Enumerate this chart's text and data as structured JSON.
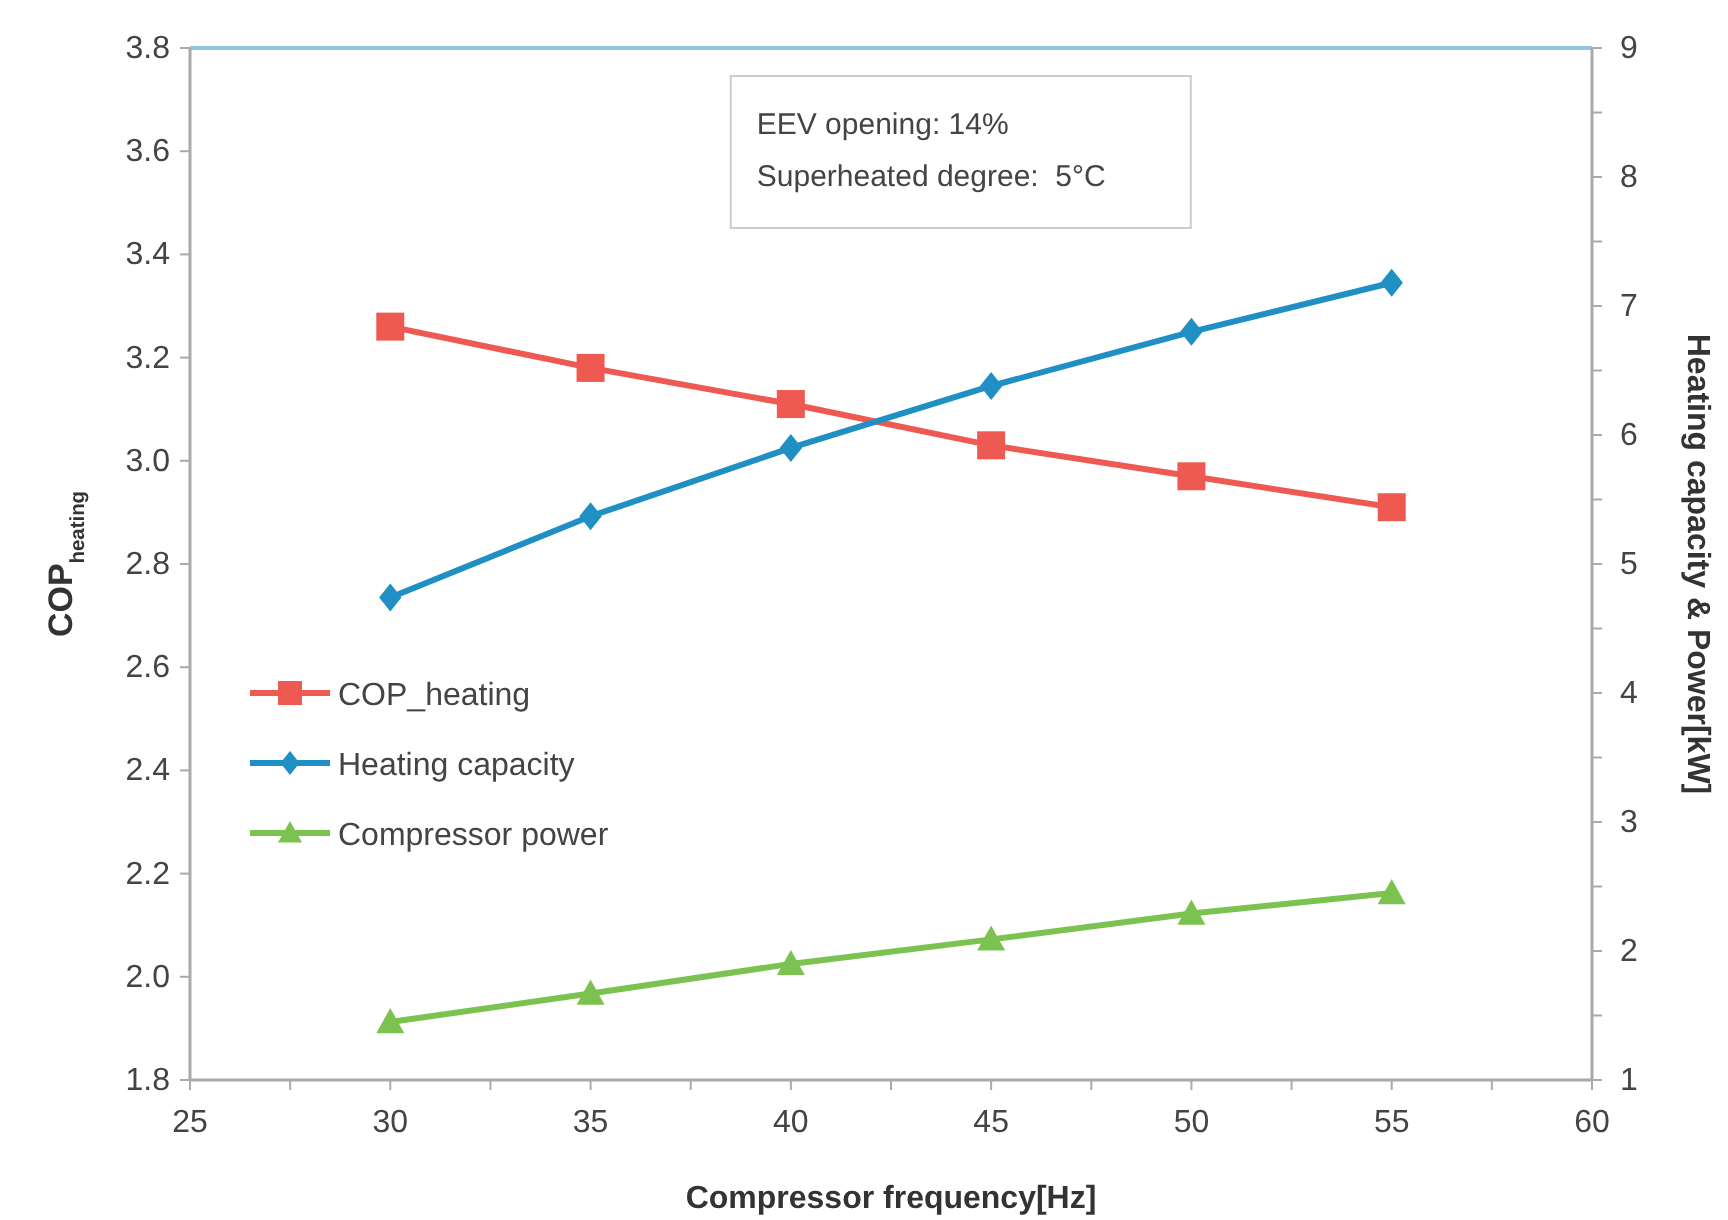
{
  "chart_data": {
    "type": "line",
    "xlabel": "Compressor frequency[Hz]",
    "ylabel": "COP$_{heating}$",
    "y2label": "Heating capacity & Power[kW]",
    "x": [
      30,
      35,
      40,
      45,
      50,
      55
    ],
    "series": [
      {
        "name": "COP_heating",
        "color": "#ee5a52",
        "marker": "square",
        "values": [
          3.26,
          3.18,
          3.11,
          3.03,
          2.97,
          2.91
        ]
      },
      {
        "name": "Heating capacity",
        "color": "#1f8fc4",
        "marker": "diamond",
        "axis": "y2",
        "values": [
          4.74,
          5.37,
          5.9,
          6.38,
          6.8,
          7.18
        ]
      },
      {
        "name": "Compressor power",
        "color": "#7cc250",
        "marker": "triangle",
        "axis": "y2",
        "values": [
          1.45,
          1.67,
          1.9,
          2.09,
          2.29,
          2.45
        ]
      }
    ],
    "xlim": [
      25,
      60
    ],
    "xticks": [
      25,
      {
        "value": 27.5,
        "label": null
      },
      30,
      {
        "value": 32.5,
        "label": null
      },
      35,
      {
        "value": 37.5,
        "label": null
      },
      40,
      {
        "value": 42.5,
        "label": null
      },
      45,
      {
        "value": 47.5,
        "label": null
      },
      50,
      {
        "value": 52.5,
        "label": null
      },
      55,
      {
        "value": 57.5,
        "label": null
      },
      60
    ],
    "ylim": [
      1.8,
      3.8
    ],
    "yticks": [
      {
        "value": 1.8,
        "label": "1.8"
      },
      {
        "value": 2.0,
        "label": "2.0"
      },
      {
        "value": 2.2,
        "label": "2.2"
      },
      {
        "value": 2.4,
        "label": "2.4"
      },
      {
        "value": 2.6,
        "label": "2.6"
      },
      {
        "value": 2.8,
        "label": "2.8"
      },
      {
        "value": 3.0,
        "label": "3.0"
      },
      {
        "value": 3.2,
        "label": "3.2"
      },
      {
        "value": 3.4,
        "label": "3.4"
      },
      {
        "value": 3.6,
        "label": "3.6"
      },
      {
        "value": 3.8,
        "label": "3.8"
      }
    ],
    "y2lim": [
      1,
      9
    ],
    "y2ticks": [
      1,
      {
        "value": 1.5,
        "label": null
      },
      2,
      {
        "value": 2.5,
        "label": null
      },
      3,
      {
        "value": 3.5,
        "label": null
      },
      4,
      {
        "value": 4.5,
        "label": null
      },
      5,
      {
        "value": 5.5,
        "label": null
      },
      6,
      {
        "value": 6.5,
        "label": null
      },
      7,
      {
        "value": 7.5,
        "label": null
      },
      8,
      {
        "value": 8.5,
        "label": null
      },
      9
    ],
    "annotations": [
      "EEV opening: 14%",
      "Superheated degree:  5°C"
    ],
    "legend": "left",
    "grid": false,
    "line_style": "solid"
  }
}
